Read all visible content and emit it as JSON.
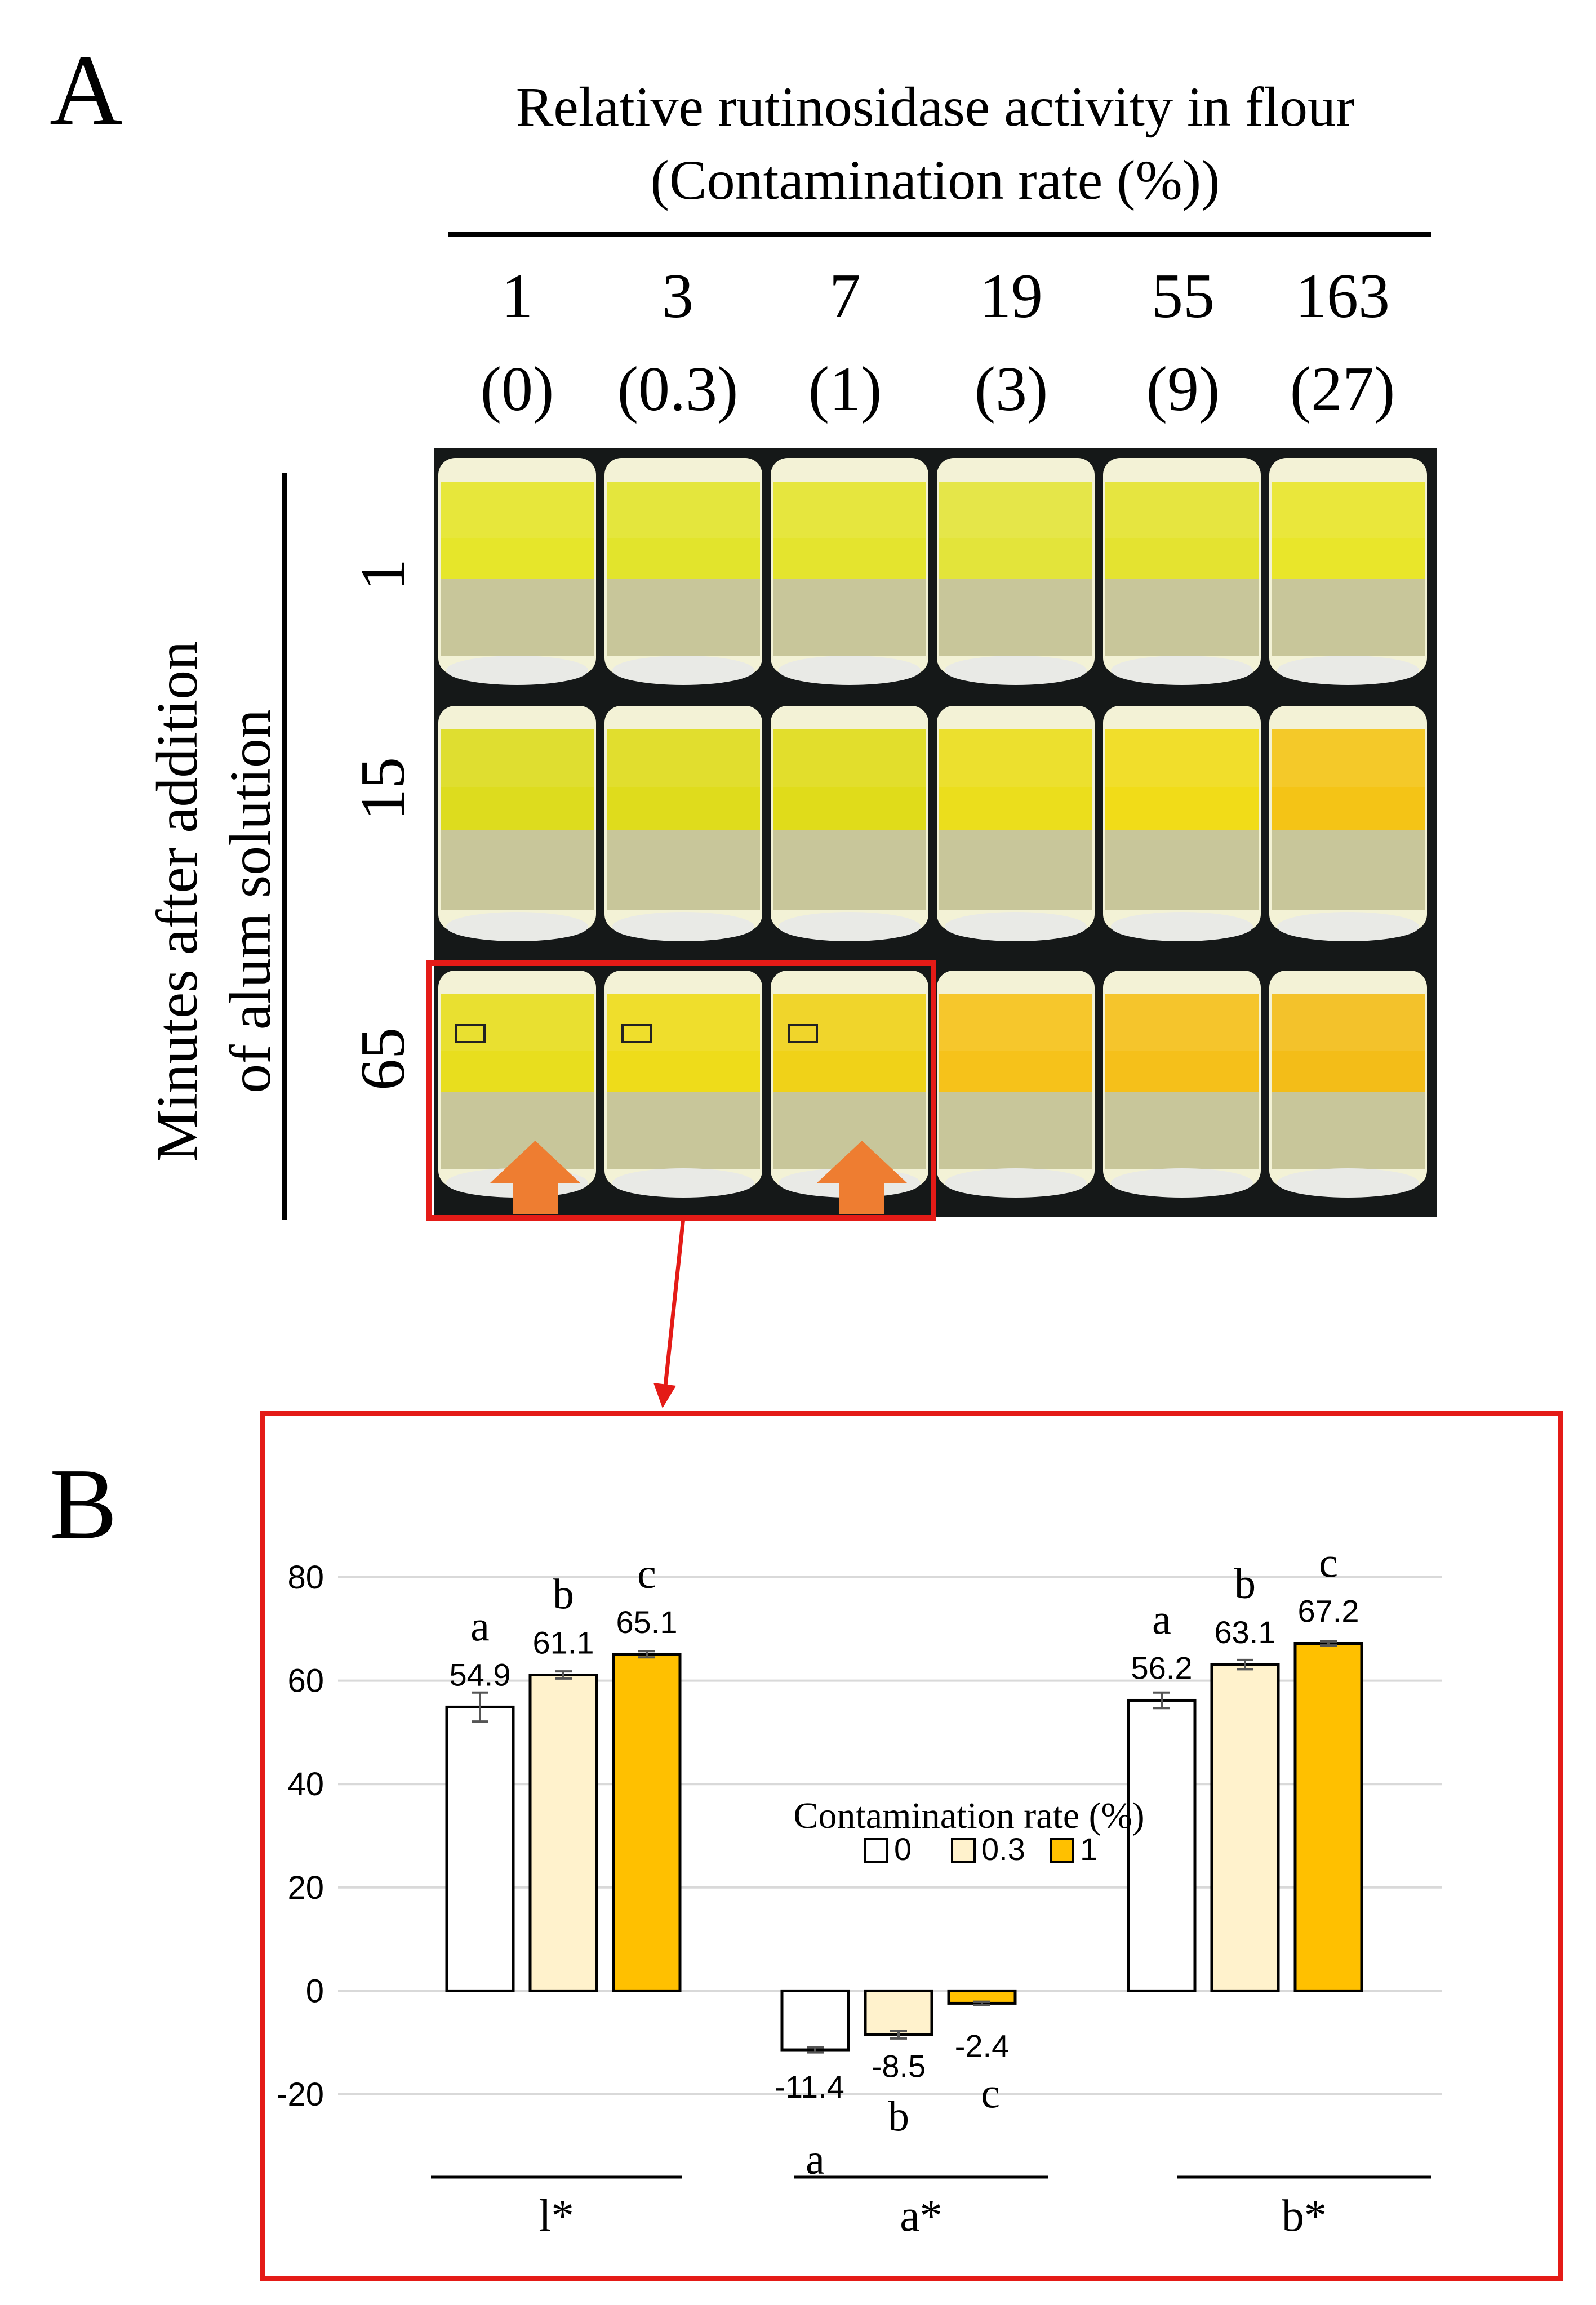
{
  "panel_a": {
    "letter": "A",
    "title_line1": "Relative rutinosidase activity in flour",
    "title_line2": "(Contamination rate (%))",
    "columns": [
      {
        "activity": "1",
        "rate": "(0)"
      },
      {
        "activity": "3",
        "rate": "(0.3)"
      },
      {
        "activity": "7",
        "rate": "(1)"
      },
      {
        "activity": "19",
        "rate": "(3)"
      },
      {
        "activity": "55",
        "rate": "(9)"
      },
      {
        "activity": "163",
        "rate": "(27)"
      }
    ],
    "row_axis_title_line1": "Minutes after addition",
    "row_axis_title_line2": "of alum solution",
    "rows": [
      "1",
      "15",
      "65"
    ],
    "liquid_colors": [
      [
        "#e6e62a",
        "#e2e42c",
        "#e4e42e",
        "#e3e43a",
        "#e4e330",
        "#e9e62a"
      ],
      [
        "#dddc1e",
        "#dfdc1c",
        "#e0dc1a",
        "#ebde1c",
        "#f1dc18",
        "#f4c416"
      ],
      [
        "#e8de1e",
        "#eedc1a",
        "#f0d218",
        "#f6c21a",
        "#f5c01a",
        "#f3bd18"
      ]
    ],
    "accent_color": "#e41b17",
    "arrow_color": "#ee7d31"
  },
  "panel_b": {
    "letter": "B",
    "legend_title": "Contamination rate (%)",
    "legend_items": [
      "0",
      "0.3",
      "1"
    ],
    "series_colors": [
      "#ffffff",
      "#fff2cc",
      "#ffc000"
    ]
  },
  "chart_data": {
    "type": "bar",
    "categories": [
      "l*",
      "a*",
      "b*"
    ],
    "series": [
      {
        "name": "0",
        "values": [
          54.9,
          -11.4,
          56.2
        ],
        "errors": [
          2.8,
          0.5,
          1.5
        ],
        "letters": [
          "a",
          "a",
          "a"
        ]
      },
      {
        "name": "0.3",
        "values": [
          61.1,
          -8.5,
          63.1
        ],
        "errors": [
          0.7,
          0.7,
          0.9
        ],
        "letters": [
          "b",
          "b",
          "b"
        ]
      },
      {
        "name": "1",
        "values": [
          65.1,
          -2.4,
          67.2
        ],
        "errors": [
          0.6,
          0.3,
          0.4
        ],
        "letters": [
          "c",
          "c",
          "c"
        ]
      }
    ],
    "value_labels": [
      [
        "54.9",
        "-11.4",
        "56.2"
      ],
      [
        "61.1",
        "-8.5",
        "63.1"
      ],
      [
        "65.1",
        "-2.4",
        "67.2"
      ]
    ],
    "yticks": [
      "80",
      "60",
      "40",
      "20",
      "0",
      "-20"
    ],
    "ylim": [
      -20,
      80
    ],
    "grid": true,
    "legend": "center"
  }
}
